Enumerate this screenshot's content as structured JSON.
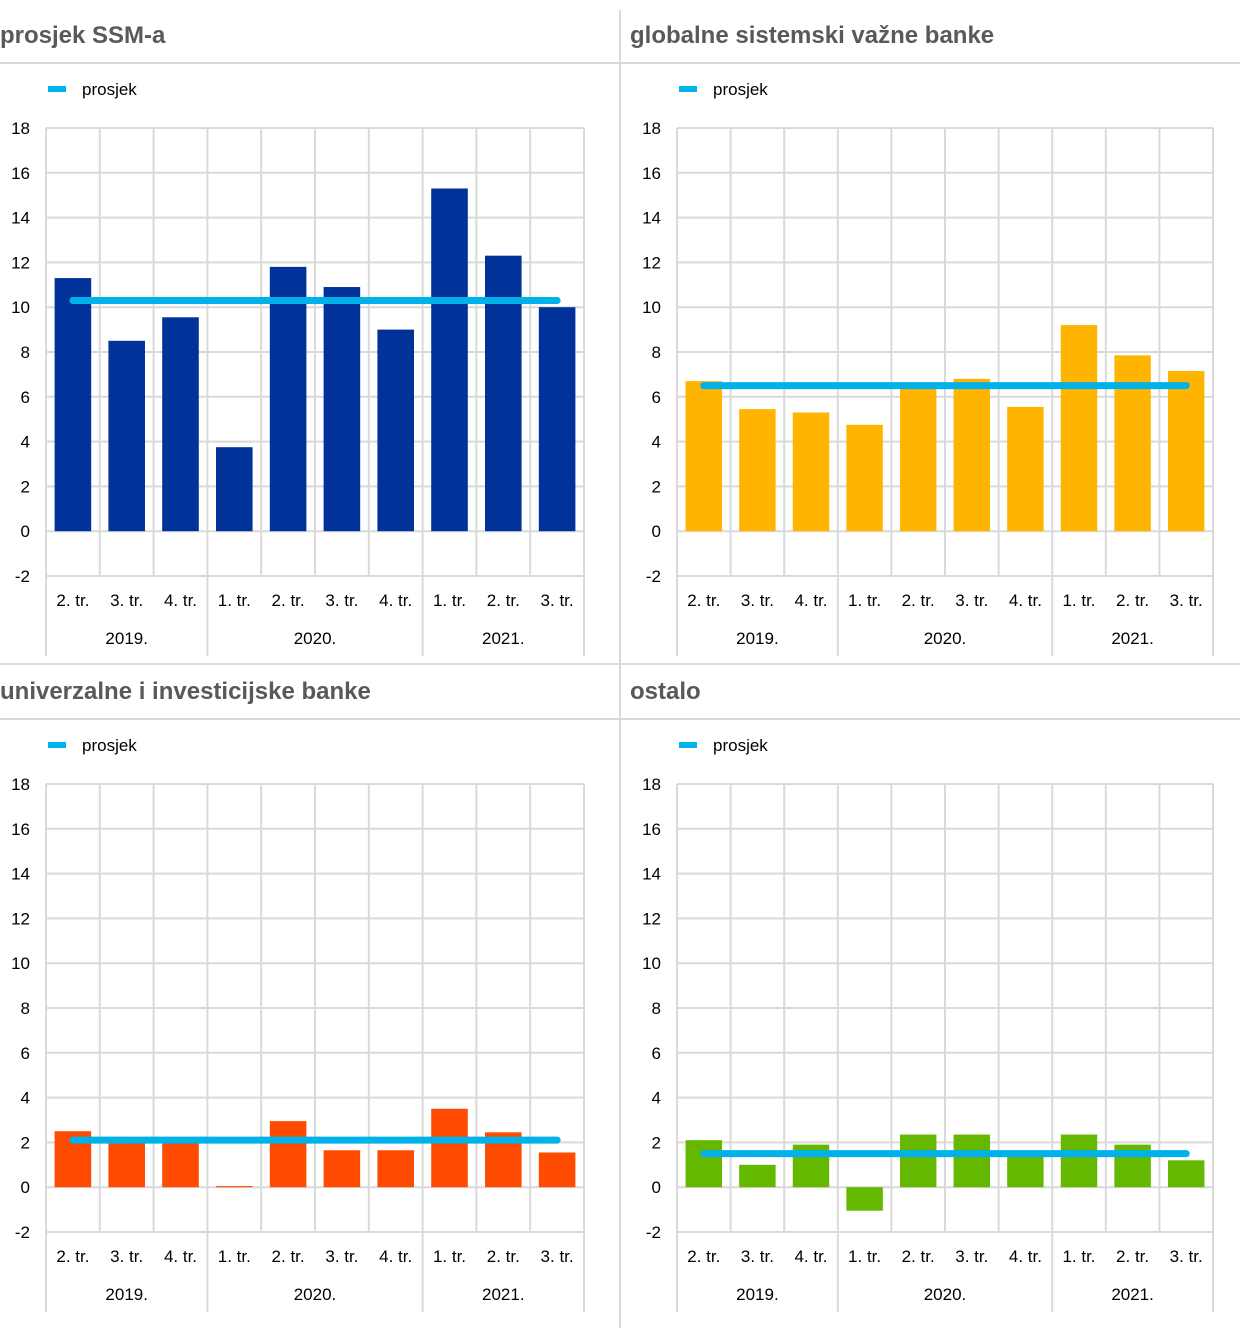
{
  "common": {
    "legend_label": "prosjek",
    "categories": [
      "2. tr.",
      "3. tr.",
      "4. tr.",
      "1. tr.",
      "2. tr.",
      "3. tr.",
      "4. tr.",
      "1. tr.",
      "2. tr.",
      "3. tr."
    ],
    "year_groups": [
      {
        "label": "2019.",
        "span": 3
      },
      {
        "label": "2020.",
        "span": 4
      },
      {
        "label": "2021.",
        "span": 3
      }
    ],
    "yticks": [
      18,
      16,
      14,
      12,
      10,
      8,
      6,
      4,
      2,
      0,
      -2
    ],
    "average_color": "#00b1ea"
  },
  "chart_data": [
    {
      "type": "bar",
      "title": "prosjek SSM-a",
      "categories": [
        "2. tr. 2019.",
        "3. tr. 2019.",
        "4. tr. 2019.",
        "1. tr. 2020.",
        "2. tr. 2020.",
        "3. tr. 2020.",
        "4. tr. 2020.",
        "1. tr. 2021.",
        "2. tr. 2021.",
        "3. tr. 2021."
      ],
      "values": [
        11.3,
        8.5,
        9.55,
        3.75,
        11.8,
        10.9,
        9.0,
        15.3,
        12.3,
        10.0
      ],
      "average": 10.3,
      "legend": [
        "prosjek"
      ],
      "color": "#003299",
      "ylim": [
        -2,
        18
      ],
      "xlabel": "",
      "ylabel": "",
      "grid": true,
      "legend_position": "top-left"
    },
    {
      "type": "bar",
      "title": "globalne sistemski važne banke",
      "categories": [
        "2. tr. 2019.",
        "3. tr. 2019.",
        "4. tr. 2019.",
        "1. tr. 2020.",
        "2. tr. 2020.",
        "3. tr. 2020.",
        "4. tr. 2020.",
        "1. tr. 2021.",
        "2. tr. 2021.",
        "3. tr. 2021."
      ],
      "values": [
        6.7,
        5.45,
        5.3,
        4.75,
        6.4,
        6.8,
        5.55,
        9.2,
        7.85,
        7.15
      ],
      "average": 6.5,
      "legend": [
        "prosjek"
      ],
      "color": "#ffb400",
      "ylim": [
        -2,
        18
      ],
      "xlabel": "",
      "ylabel": "",
      "grid": true,
      "legend_position": "top-left"
    },
    {
      "type": "bar",
      "title": "univerzalne i investicijske banke",
      "categories": [
        "2. tr. 2019.",
        "3. tr. 2019.",
        "4. tr. 2019.",
        "1. tr. 2020.",
        "2. tr. 2020.",
        "3. tr. 2020.",
        "4. tr. 2020.",
        "1. tr. 2021.",
        "2. tr. 2021.",
        "3. tr. 2021."
      ],
      "values": [
        2.5,
        2.0,
        2.0,
        0.05,
        2.95,
        1.65,
        1.65,
        3.5,
        2.45,
        1.55
      ],
      "average": 2.1,
      "legend": [
        "prosjek"
      ],
      "color": "#ff4b00",
      "ylim": [
        -2,
        18
      ],
      "xlabel": "",
      "ylabel": "",
      "grid": true,
      "legend_position": "top-left"
    },
    {
      "type": "bar",
      "title": "ostalo",
      "categories": [
        "2. tr. 2019.",
        "3. tr. 2019.",
        "4. tr. 2019.",
        "1. tr. 2020.",
        "2. tr. 2020.",
        "3. tr. 2020.",
        "4. tr. 2020.",
        "1. tr. 2021.",
        "2. tr. 2021.",
        "3. tr. 2021."
      ],
      "values": [
        2.1,
        1.0,
        1.9,
        -1.05,
        2.35,
        2.35,
        1.5,
        2.35,
        1.9,
        1.2
      ],
      "average": 1.5,
      "legend": [
        "prosjek"
      ],
      "color": "#65b800",
      "ylim": [
        -2,
        18
      ],
      "xlabel": "",
      "ylabel": "",
      "grid": true,
      "legend_position": "top-left"
    }
  ]
}
